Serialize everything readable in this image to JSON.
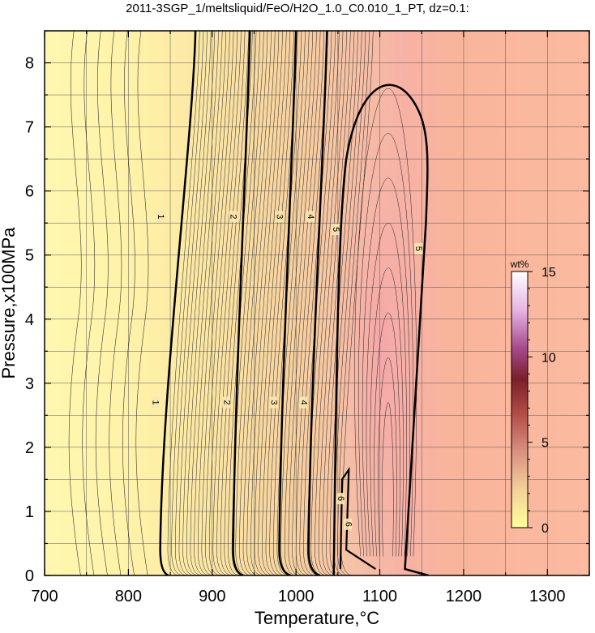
{
  "chart_data": {
    "type": "heatmap",
    "title": "2011-3SGP_1/meltsliquid/FeO/H2O_1.0_C0.010_1_PT, dz=0.1:",
    "xlabel": "Temperature,°C",
    "ylabel": "Pressure,x100MPa",
    "xlim": [
      700,
      1350
    ],
    "ylim": [
      0,
      8.5
    ],
    "x_ticks": [
      700,
      800,
      900,
      1000,
      1100,
      1200,
      1300
    ],
    "y_ticks": [
      0,
      1,
      2,
      3,
      4,
      5,
      6,
      7,
      8
    ],
    "grid": true,
    "colorbar": {
      "unit": "wt%",
      "range": [
        0,
        15
      ],
      "ticks": [
        0,
        5,
        10,
        15
      ]
    },
    "contour_labels": [
      {
        "text": "1",
        "x": 838,
        "y": 5.6
      },
      {
        "text": "1",
        "x": 832,
        "y": 2.7
      },
      {
        "text": "2",
        "x": 925,
        "y": 5.6
      },
      {
        "text": "2",
        "x": 917,
        "y": 2.7
      },
      {
        "text": "3",
        "x": 980,
        "y": 5.6
      },
      {
        "text": "3",
        "x": 973,
        "y": 2.7
      },
      {
        "text": "4",
        "x": 1017,
        "y": 5.6
      },
      {
        "text": "4",
        "x": 1009,
        "y": 2.7
      },
      {
        "text": "5",
        "x": 1047,
        "y": 5.4
      },
      {
        "text": "5",
        "x": 1146,
        "y": 5.1
      },
      {
        "text": "6",
        "x": 1053,
        "y": 1.2
      },
      {
        "text": "6",
        "x": 1062,
        "y": 0.8
      }
    ]
  }
}
